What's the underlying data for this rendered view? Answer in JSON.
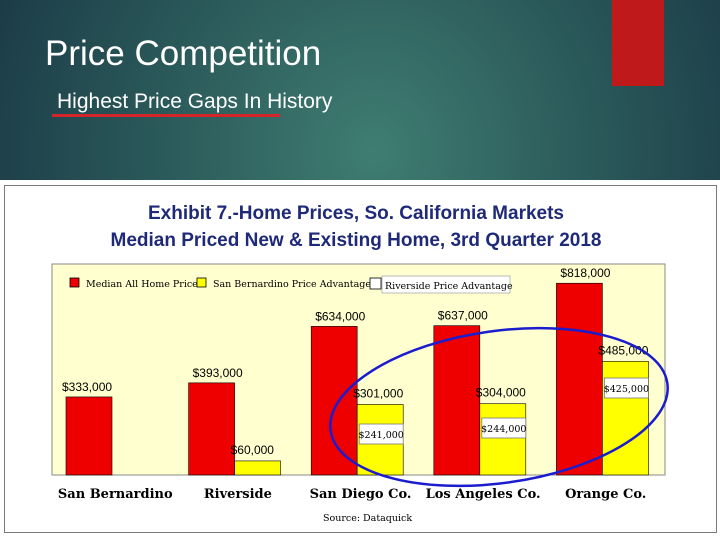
{
  "slide": {
    "title": "Price Competition",
    "subtitle": "Highest Price Gaps In History",
    "accent_color": "#c0191b"
  },
  "chart_data": {
    "type": "bar",
    "title": "Exhibit 7.-Home Prices,  So. California Markets",
    "subtitle": "Median Priced New & Existing Home, 3rd Quarter 2018",
    "source": "Source:  Dataquick",
    "categories": [
      "San Bernardino",
      "Riverside",
      "San Diego Co.",
      "Los Angeles Co.",
      "Orange Co."
    ],
    "series": [
      {
        "name": "Median All Home Price",
        "color": "#ee0000",
        "values": [
          333000,
          393000,
          634000,
          637000,
          818000
        ],
        "labels": [
          "$333,000",
          "$393,000",
          "$634,000",
          "$637,000",
          "$818,000"
        ]
      },
      {
        "name": "San Bernardino  Price Advantage",
        "color": "#ffff00",
        "values": [
          null,
          60000,
          301000,
          304000,
          485000
        ],
        "labels": [
          "",
          "$60,000",
          "$301,000",
          "$304,000",
          "$485,000"
        ]
      },
      {
        "name": "Riverside Price Advantage",
        "values": [
          null,
          null,
          241000,
          244000,
          425000
        ],
        "labels": [
          "",
          "",
          "$241,000",
          "$244,000",
          "$425,000"
        ]
      }
    ],
    "ylim": [
      0,
      900000
    ],
    "highlight": "blue ellipse around San Diego Co., Los Angeles Co., Orange Co."
  }
}
